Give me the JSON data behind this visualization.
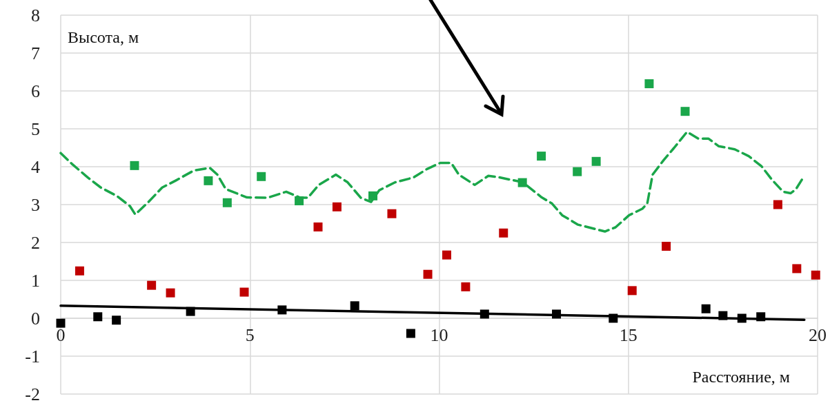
{
  "chart_data": {
    "type": "scatter",
    "xlabel": "Расстояние, м",
    "ylabel": "Высота, м",
    "xlim": [
      0,
      20
    ],
    "xticks": [
      0,
      5,
      10,
      15,
      20
    ],
    "ylim": [
      -2,
      8
    ],
    "yticks": [
      -2,
      -1,
      0,
      1,
      2,
      3,
      4,
      5,
      6,
      7,
      8
    ],
    "grid": true,
    "marker": "square",
    "series": [
      {
        "type": "line",
        "marker": "none",
        "line_style": "dashed",
        "color": "#1aa64a",
        "x": [
          0,
          0.29,
          0.71,
          1.06,
          1.48,
          1.83,
          1.97,
          2.32,
          2.68,
          3.03,
          3.52,
          3.94,
          4.14,
          4.36,
          4.92,
          5.47,
          5.96,
          6.33,
          6.53,
          6.82,
          7.27,
          7.58,
          7.93,
          8.2,
          8.42,
          8.84,
          9.19,
          9.33,
          9.68,
          10.03,
          10.32,
          10.52,
          10.94,
          11.3,
          11.58,
          11.92,
          12.21,
          12.71,
          12.98,
          13.25,
          13.67,
          14.11,
          14.38,
          14.66,
          15.02,
          15.37,
          15.5,
          15.64,
          15.93,
          16.21,
          16.55,
          16.85,
          17.12,
          17.39,
          17.81,
          18.18,
          18.52,
          18.8,
          19.09,
          19.29,
          19.43,
          19.6
        ],
        "values": [
          4.36,
          4.08,
          3.72,
          3.45,
          3.23,
          2.96,
          2.74,
          3.07,
          3.45,
          3.63,
          3.9,
          3.97,
          3.79,
          3.41,
          3.19,
          3.18,
          3.34,
          3.18,
          3.18,
          3.52,
          3.79,
          3.59,
          3.18,
          3.07,
          3.38,
          3.59,
          3.68,
          3.72,
          3.94,
          4.1,
          4.1,
          3.79,
          3.52,
          3.76,
          3.72,
          3.65,
          3.59,
          3.19,
          3.03,
          2.72,
          2.47,
          2.36,
          2.29,
          2.4,
          2.72,
          2.89,
          3.03,
          3.79,
          4.17,
          4.5,
          4.92,
          4.74,
          4.74,
          4.54,
          4.46,
          4.28,
          4.01,
          3.65,
          3.34,
          3.3,
          3.41,
          3.68
        ]
      },
      {
        "type": "line",
        "marker": "none",
        "line_style": "solid",
        "color": "#000000",
        "x": [
          0,
          19.65
        ],
        "values": [
          0.33,
          -0.04
        ]
      },
      {
        "color": "#1aa64a",
        "x": [
          1.95,
          3.9,
          4.4,
          5.3,
          6.3,
          8.25,
          12.2,
          12.7,
          13.65,
          14.15,
          15.55,
          16.5
        ],
        "values": [
          4.03,
          3.63,
          3.05,
          3.74,
          3.1,
          3.23,
          3.58,
          4.28,
          3.87,
          4.14,
          6.19,
          5.46
        ]
      },
      {
        "color": "#c00000",
        "x": [
          0.5,
          2.4,
          2.9,
          4.85,
          6.8,
          7.3,
          8.75,
          9.7,
          10.2,
          10.7,
          11.7,
          15.1,
          16.0,
          18.95,
          19.45,
          19.95
        ],
        "values": [
          1.25,
          0.87,
          0.67,
          0.69,
          2.41,
          2.94,
          2.76,
          1.16,
          1.67,
          0.83,
          2.25,
          0.73,
          1.9,
          3.0,
          1.31,
          1.14
        ]
      },
      {
        "color": "#000000",
        "x": [
          0,
          0.98,
          1.47,
          3.43,
          5.85,
          7.77,
          9.25,
          11.2,
          13.1,
          14.6,
          17.05,
          17.5,
          18,
          18.5
        ],
        "values": [
          -0.13,
          0.04,
          -0.05,
          0.18,
          0.22,
          0.33,
          -0.4,
          0.11,
          0.11,
          0,
          0.25,
          0.07,
          0,
          0.04
        ]
      }
    ]
  }
}
